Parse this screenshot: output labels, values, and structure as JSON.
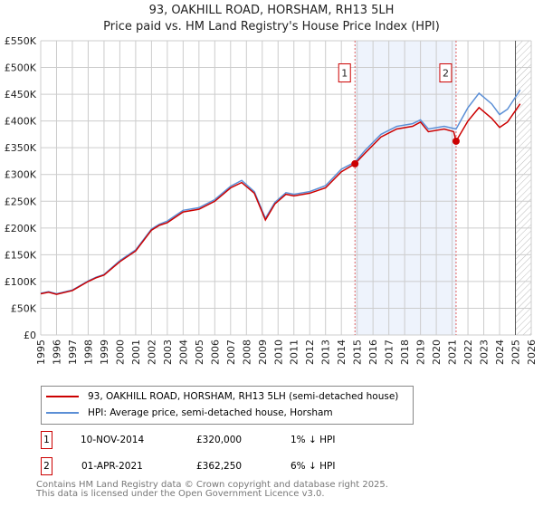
{
  "chart_data": {
    "type": "line",
    "title": "93, OAKHILL ROAD, HORSHAM, RH13 5LH",
    "subtitle": "Price paid vs. HM Land Registry's House Price Index (HPI)",
    "xlim": [
      1995,
      2026
    ],
    "ylim": [
      0,
      550000
    ],
    "x_ticks": [
      "1995",
      "1996",
      "1997",
      "1998",
      "1999",
      "2000",
      "2001",
      "2002",
      "2003",
      "2004",
      "2005",
      "2006",
      "2007",
      "2008",
      "2009",
      "2010",
      "2011",
      "2012",
      "2013",
      "2014",
      "2015",
      "2016",
      "2017",
      "2018",
      "2019",
      "2020",
      "2021",
      "2022",
      "2023",
      "2024",
      "2025",
      "2026"
    ],
    "y_ticks": [
      {
        "v": 0,
        "l": "£0"
      },
      {
        "v": 50000,
        "l": "£50K"
      },
      {
        "v": 100000,
        "l": "£100K"
      },
      {
        "v": 150000,
        "l": "£150K"
      },
      {
        "v": 200000,
        "l": "£200K"
      },
      {
        "v": 250000,
        "l": "£250K"
      },
      {
        "v": 300000,
        "l": "£300K"
      },
      {
        "v": 350000,
        "l": "£350K"
      },
      {
        "v": 400000,
        "l": "£400K"
      },
      {
        "v": 450000,
        "l": "£450K"
      },
      {
        "v": 500000,
        "l": "£500K"
      },
      {
        "v": 550000,
        "l": "£550K"
      }
    ],
    "grid": true,
    "series": [
      {
        "name": "93, OAKHILL ROAD, HORSHAM, RH13 5LH (semi-detached house)",
        "color": "#cc0000",
        "x": [
          1995,
          1995.5,
          1996,
          1997,
          1998,
          1998.5,
          1999,
          2000,
          2001,
          2002,
          2002.5,
          2003,
          2004,
          2005,
          2006,
          2007,
          2007.7,
          2008.5,
          2009.2,
          2009.8,
          2010.5,
          2011,
          2012,
          2013,
          2014,
          2014.86,
          2015.5,
          2016.5,
          2017.5,
          2018.5,
          2019,
          2019.5,
          2020.5,
          2021.1,
          2021.25,
          2022,
          2022.7,
          2023.5,
          2024,
          2024.5,
          2025.3
        ],
        "y": [
          77000,
          80000,
          76000,
          83000,
          100000,
          107000,
          112000,
          137000,
          157000,
          196000,
          205000,
          210000,
          230000,
          235000,
          250000,
          275000,
          285000,
          265000,
          215000,
          245000,
          263000,
          260000,
          265000,
          275000,
          305000,
          320000,
          340000,
          370000,
          385000,
          390000,
          398000,
          380000,
          385000,
          380000,
          362250,
          400000,
          425000,
          405000,
          388000,
          398000,
          432000
        ]
      },
      {
        "name": "HPI: Average price, semi-detached house, Horsham",
        "color": "#5b8fd6",
        "x": [
          1995,
          1995.5,
          1996,
          1997,
          1998,
          1998.5,
          1999,
          2000,
          2001,
          2002,
          2002.5,
          2003,
          2004,
          2005,
          2006,
          2007,
          2007.7,
          2008.5,
          2009.2,
          2009.8,
          2010.5,
          2011,
          2012,
          2013,
          2014,
          2014.86,
          2015.5,
          2016.5,
          2017.5,
          2018.5,
          2019,
          2019.5,
          2020.5,
          2021.25,
          2022,
          2022.7,
          2023.5,
          2024,
          2024.5,
          2025.3
        ],
        "y": [
          78000,
          81000,
          77000,
          84000,
          101000,
          108000,
          113000,
          139000,
          159000,
          198000,
          207000,
          213000,
          233000,
          238000,
          253000,
          278000,
          289000,
          268000,
          218000,
          248000,
          266000,
          263000,
          268000,
          279000,
          310000,
          323000,
          345000,
          375000,
          390000,
          395000,
          402000,
          385000,
          390000,
          385000,
          425000,
          452000,
          432000,
          412000,
          422000,
          458000
        ]
      }
    ],
    "annotations": [
      {
        "label": "1",
        "x": 2014.86,
        "y": 320000,
        "date": "10-NOV-2014",
        "price": "£320,000",
        "hpi": "1% ↓ HPI"
      },
      {
        "label": "2",
        "x": 2021.25,
        "y": 362250,
        "date": "01-APR-2021",
        "price": "£362,250",
        "hpi": "6% ↓ HPI"
      }
    ],
    "forecast_from": 2025.0
  },
  "footer": {
    "line1": "Contains HM Land Registry data © Crown copyright and database right 2025.",
    "line2": "This data is licensed under the Open Government Licence v3.0."
  }
}
